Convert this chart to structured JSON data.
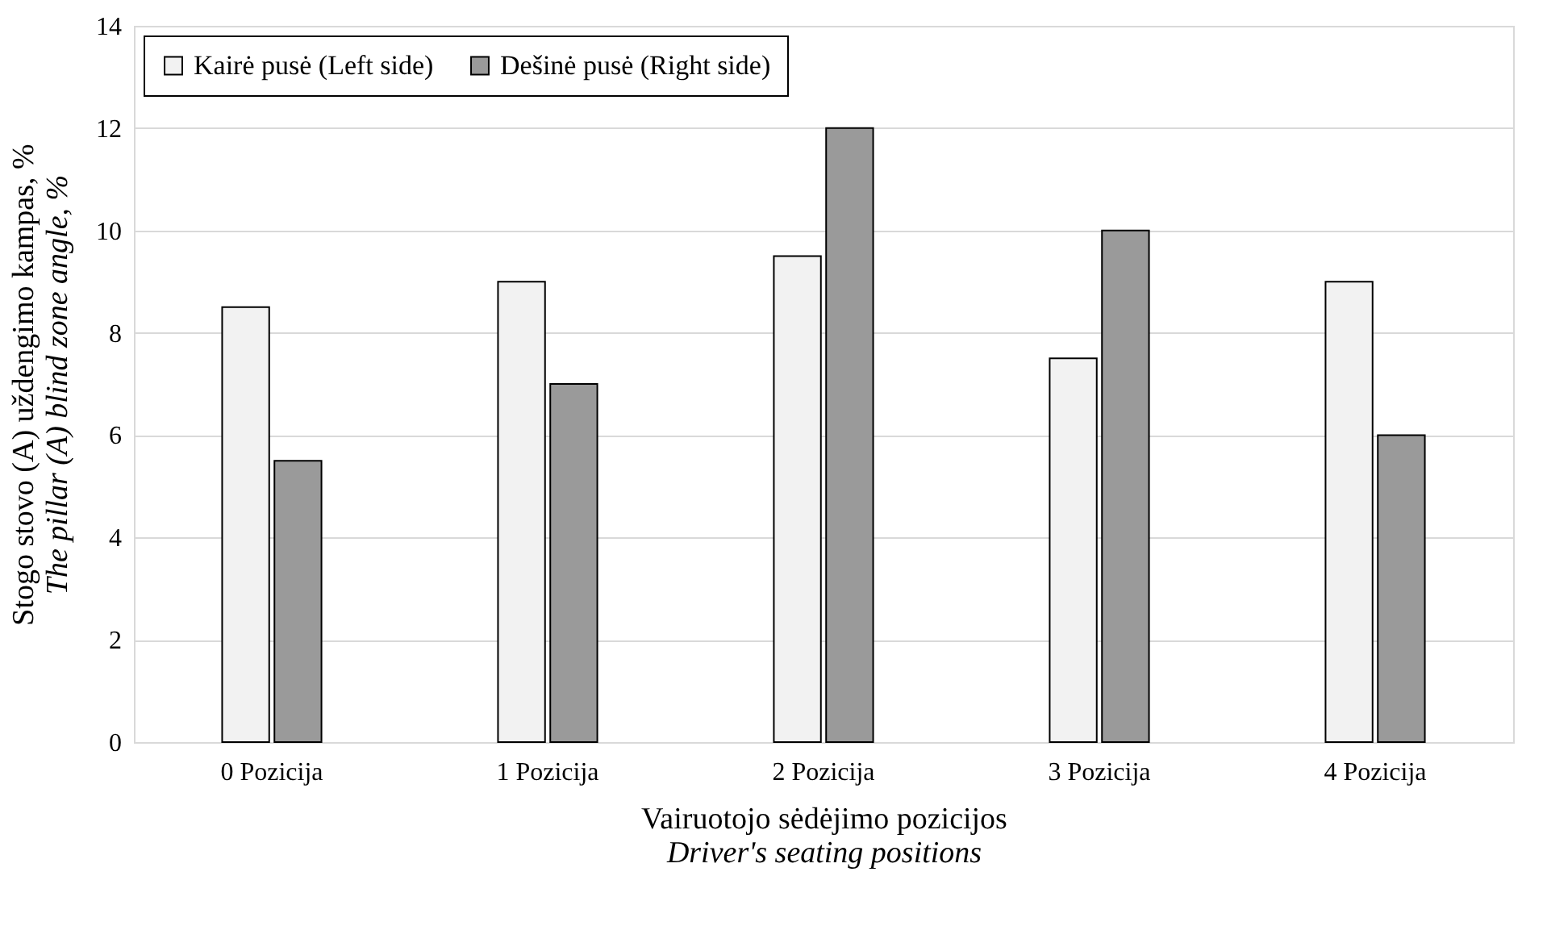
{
  "chart_data": {
    "type": "bar",
    "xlabel": "Vairuotojo sėdėjimo pozicijos\nDriver's seating positions",
    "ylabel": "Stogo stovo (A) uždengimo kampas, %\nThe pillar (A) blind zone angle, %",
    "categories": [
      "0 Pozicija",
      "1 Pozicija",
      "2 Pozicija",
      "3 Pozicija",
      "4 Pozicija"
    ],
    "series": [
      {
        "name": "Kairė pusė (Left side)",
        "color": "#f2f2f2",
        "values": [
          8.5,
          9,
          9.5,
          7.5,
          9
        ]
      },
      {
        "name": "Dešinė pusė (Right side)",
        "color": "#9a9a9a",
        "values": [
          5.5,
          7,
          12,
          10,
          6
        ]
      }
    ],
    "ylim": [
      0,
      14
    ],
    "yticks": [
      0,
      2,
      4,
      6,
      8,
      10,
      12,
      14
    ],
    "grid": "y",
    "legend": "top left"
  }
}
